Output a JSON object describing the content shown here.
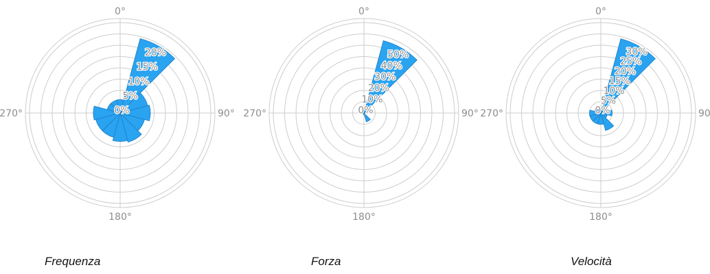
{
  "colors": {
    "bar_fill": "#2aa3f0",
    "bar_stroke": "#1d7fc4",
    "grid": "#cccccc",
    "label": "#8c8c8c"
  },
  "chart_data": [
    {
      "type": "polar-bar",
      "title": "Frequenza",
      "direction_labels": [
        "0°",
        "90°",
        "180°",
        "270°"
      ],
      "rlim": [
        0,
        27
      ],
      "radial_ticks": [
        0,
        5,
        10,
        15,
        20
      ],
      "radial_tick_labels": [
        "0%",
        "5%",
        "10%",
        "15%",
        "20%"
      ],
      "sector_width_deg": 30,
      "directions": [
        0,
        30,
        60,
        90,
        120,
        150,
        180,
        210,
        240,
        270,
        300,
        330
      ],
      "values": [
        4,
        23,
        8.5,
        9,
        7.5,
        9,
        8.5,
        7.5,
        7.5,
        8,
        4,
        4
      ]
    },
    {
      "type": "polar-bar",
      "title": "Forza",
      "direction_labels": [
        "0°",
        "90°",
        "180°",
        "270°"
      ],
      "rlim": [
        0,
        70
      ],
      "radial_ticks": [
        0,
        10,
        20,
        30,
        40,
        50
      ],
      "radial_tick_labels": [
        "0%",
        "10%",
        "20%",
        "30%",
        "40%",
        "50%"
      ],
      "sector_width_deg": 30,
      "directions": [
        0,
        30,
        60,
        90,
        120,
        150,
        180,
        210,
        240,
        270,
        300,
        330
      ],
      "values": [
        1,
        58,
        1,
        1,
        1,
        7,
        1,
        1,
        1,
        1,
        1,
        2
      ]
    },
    {
      "type": "polar-bar",
      "title": "Velocità",
      "direction_labels": [
        "0°",
        "90°",
        "180°",
        "270°"
      ],
      "rlim": [
        0,
        40
      ],
      "radial_ticks": [
        0,
        5,
        10,
        15,
        20,
        25,
        30
      ],
      "radial_tick_labels": [
        "0%",
        "5%",
        "10%",
        "15%",
        "20%",
        "25%",
        "30%"
      ],
      "sector_width_deg": 30,
      "directions": [
        0,
        30,
        60,
        90,
        120,
        150,
        180,
        210,
        240,
        270,
        300,
        330
      ],
      "values": [
        2,
        34,
        2,
        5,
        3,
        8,
        5,
        5,
        5,
        5,
        3,
        2
      ]
    }
  ]
}
